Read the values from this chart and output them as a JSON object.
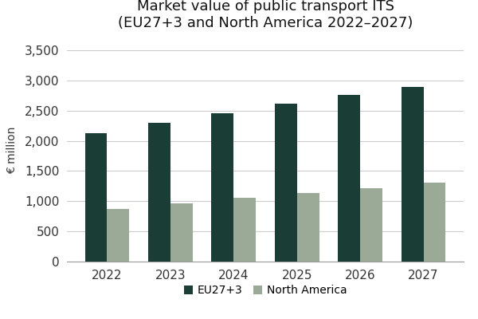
{
  "title_line1": "Market value of public transport ITS",
  "title_line2": "(EU27+3 and North America 2022–2027)",
  "years": [
    2022,
    2023,
    2024,
    2025,
    2026,
    2027
  ],
  "eu_values": [
    2130,
    2300,
    2460,
    2610,
    2760,
    2900
  ],
  "na_values": [
    870,
    970,
    1060,
    1140,
    1220,
    1310
  ],
  "eu_color": "#1a3d35",
  "na_color": "#9aaa96",
  "ylabel": "€ million",
  "ylim": [
    0,
    3700
  ],
  "yticks": [
    0,
    500,
    1000,
    1500,
    2000,
    2500,
    3000,
    3500
  ],
  "legend_eu": "EU27+3",
  "legend_na": "North America",
  "background_color": "#ffffff",
  "grid_color": "#cccccc",
  "bar_width": 0.35,
  "title_fontsize": 13,
  "tick_fontsize": 11,
  "ylabel_fontsize": 10
}
